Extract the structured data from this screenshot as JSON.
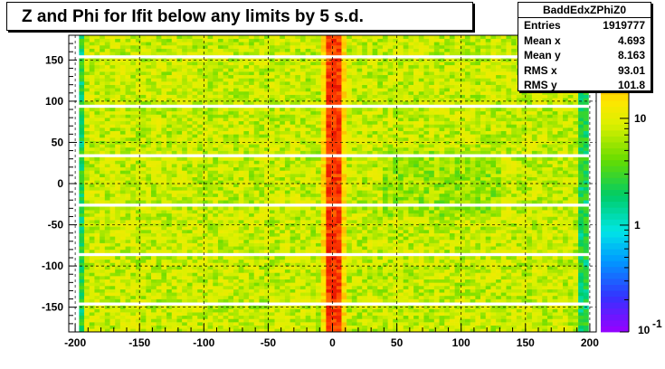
{
  "chart_data": {
    "type": "heatmap",
    "title": "Z and Phi for Ifit below any limits by 5 s.d.",
    "xlabel": "",
    "ylabel": "",
    "xlim": [
      -205,
      205
    ],
    "ylim": [
      -180,
      180
    ],
    "x_ticks": [
      -200,
      -150,
      -100,
      -50,
      0,
      50,
      100,
      150,
      200
    ],
    "y_ticks": [
      -150,
      -100,
      -50,
      0,
      50,
      100,
      150
    ],
    "colorbar": {
      "scale": "log",
      "range": [
        0.1,
        60
      ],
      "tick_values": [
        1,
        10
      ],
      "tick_labels": [
        "1",
        "10"
      ],
      "bottom_label": "10",
      "bottom_label_exponent": "-1"
    },
    "grid": true,
    "data_extent_x": [
      -197,
      197
    ],
    "gap_rows_y": [
      -145,
      -85,
      -25,
      35,
      95,
      155
    ],
    "central_peak_x": 0,
    "levels": {
      "background": 8,
      "edges": 3,
      "center": 45
    },
    "stats": {
      "name": "BaddEdxZPhiZ0",
      "entries_label": "Entries",
      "entries": "1919777",
      "mean_x_label": "Mean x",
      "mean_x": "4.693",
      "mean_y_label": "Mean y",
      "mean_y": "8.163",
      "rms_x_label": "RMS x",
      "rms_x": "93.01",
      "rms_y_label": "RMS y",
      "rms_y": "101.8"
    }
  }
}
